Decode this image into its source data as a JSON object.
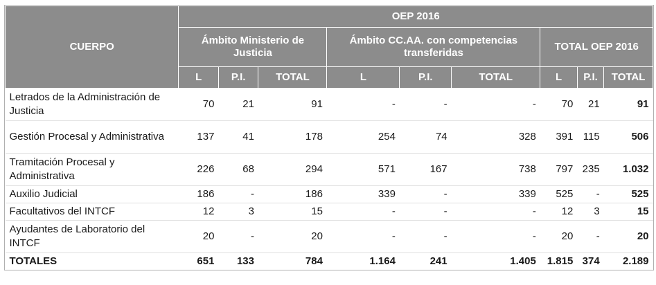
{
  "header": {
    "cuerpo": "CUERPO",
    "group_title": "OEP 2016",
    "groups": [
      "Ámbito Ministerio de Justicia",
      "Ámbito CC.AA. con competencias transferidas",
      "TOTAL OEP 2016"
    ],
    "sub": [
      "L",
      "P.I.",
      "TOTAL"
    ]
  },
  "rows": [
    {
      "name": "Letrados de la Administración de Justicia",
      "v": [
        "70",
        "21",
        "91",
        "-",
        "-",
        "-",
        "70",
        "21",
        "91"
      ]
    },
    {
      "name": "Gestión Procesal y Administrativa",
      "v": [
        "137",
        "41",
        "178",
        "254",
        "74",
        "328",
        "391",
        "115",
        "506"
      ]
    },
    {
      "name": "Tramitación Procesal y Administrativa",
      "v": [
        "226",
        "68",
        "294",
        "571",
        "167",
        "738",
        "797",
        "235",
        "1.032"
      ]
    },
    {
      "name": "Auxilio Judicial",
      "v": [
        "186",
        "-",
        "186",
        "339",
        "-",
        "339",
        "525",
        "-",
        "525"
      ]
    },
    {
      "name": "Facultativos del INTCF",
      "v": [
        "12",
        "3",
        "15",
        "-",
        "-",
        "-",
        "12",
        "3",
        "15"
      ]
    },
    {
      "name": "Ayudantes de Laboratorio del INTCF",
      "v": [
        "20",
        "-",
        "20",
        "-",
        "-",
        "-",
        "20",
        "-",
        "20"
      ]
    },
    {
      "name": "TOTALES",
      "v": [
        "651",
        "133",
        "784",
        "1.164",
        "241",
        "1.405",
        "1.815",
        "374",
        "2.189"
      ]
    }
  ]
}
